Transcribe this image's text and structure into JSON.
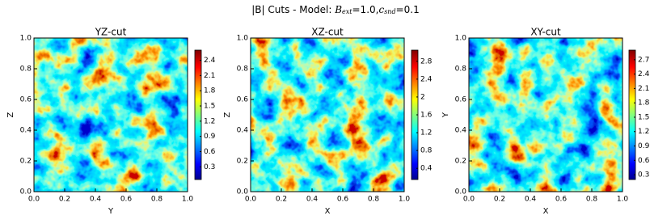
{
  "title": {
    "prefix": "|B| Cuts - Model:",
    "b": "B",
    "b_sub": "ext",
    "b_eq": "=1.0,",
    "c": "c",
    "c_sub": "snd",
    "c_eq": "=0.1"
  },
  "chart_data": [
    {
      "type": "heatmap",
      "title": "YZ-cut",
      "xlabel": "Y",
      "ylabel": "Z",
      "colormap": "jet",
      "xlim": [
        0,
        1
      ],
      "ylim": [
        0,
        1
      ],
      "xticks": [
        {
          "value": 0,
          "label": "0.0"
        },
        0.2,
        0.4,
        0.6,
        0.8,
        {
          "value": 1,
          "label": "1.0"
        }
      ],
      "yticks": [
        {
          "value": 0,
          "label": "0.0"
        },
        0.2,
        0.4,
        0.6,
        0.8,
        {
          "value": 1,
          "label": "1.0"
        }
      ],
      "colorbar": {
        "lim": [
          0.05,
          2.6
        ],
        "ticks": [
          0.3,
          0.6,
          0.9,
          1.2,
          1.5,
          1.8,
          2.1,
          2.4
        ]
      }
    },
    {
      "type": "heatmap",
      "title": "XZ-cut",
      "xlabel": "X",
      "ylabel": "Z",
      "colormap": "jet",
      "xlim": [
        0,
        1
      ],
      "ylim": [
        0,
        1
      ],
      "xticks": [
        {
          "value": 0,
          "label": "0.0"
        },
        0.2,
        0.4,
        0.6,
        0.8,
        {
          "value": 1,
          "label": "1.0"
        }
      ],
      "yticks": [
        {
          "value": 0,
          "label": "0.0"
        },
        0.2,
        0.4,
        0.6,
        0.8,
        {
          "value": 1,
          "label": "1.0"
        }
      ],
      "colorbar": {
        "lim": [
          0.15,
          3.05
        ],
        "ticks": [
          0.4,
          0.8,
          1.2,
          1.6,
          2.0,
          2.4,
          2.8
        ]
      }
    },
    {
      "type": "heatmap",
      "title": "XY-cut",
      "xlabel": "X",
      "ylabel": "Y",
      "colormap": "jet",
      "xlim": [
        0,
        1
      ],
      "ylim": [
        0,
        1
      ],
      "xticks": [
        {
          "value": 0,
          "label": "0.0"
        },
        0.2,
        0.4,
        0.6,
        0.8,
        {
          "value": 1,
          "label": "1.0"
        }
      ],
      "yticks": [
        {
          "value": 0,
          "label": "0.0"
        },
        0.2,
        0.4,
        0.6,
        0.8,
        {
          "value": 1,
          "label": "1.0"
        }
      ],
      "colorbar": {
        "lim": [
          0.2,
          2.9
        ],
        "ticks": [
          0.3,
          0.6,
          0.9,
          1.2,
          1.5,
          1.8,
          2.1,
          2.4,
          2.7
        ]
      }
    }
  ]
}
